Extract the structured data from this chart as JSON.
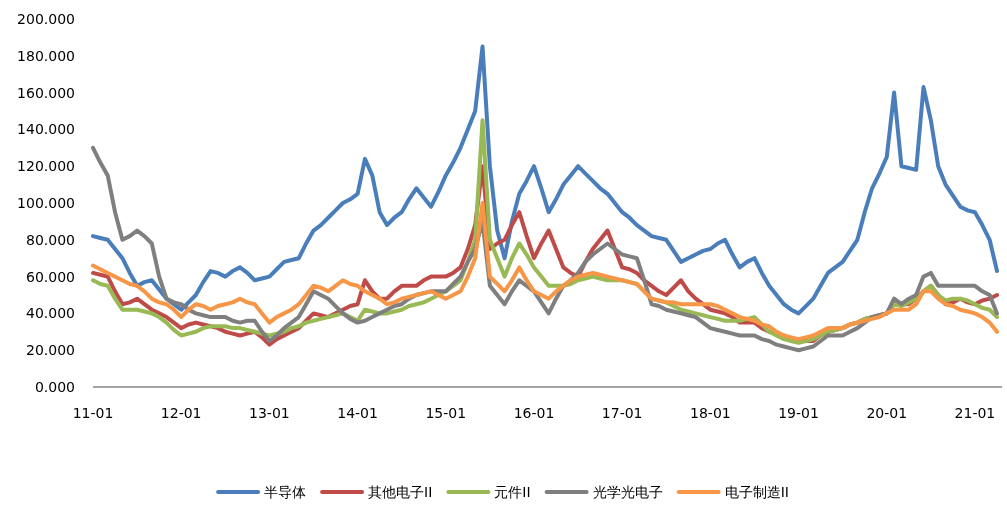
{
  "chart_data": {
    "type": "line",
    "categories": [
      "11-01",
      null,
      null,
      null,
      null,
      null,
      null,
      null,
      null,
      null,
      null,
      null,
      "12-01",
      null,
      null,
      null,
      null,
      null,
      null,
      null,
      null,
      null,
      null,
      null,
      "13-01",
      null,
      null,
      null,
      null,
      null,
      null,
      null,
      null,
      null,
      null,
      null,
      "14-01",
      null,
      null,
      null,
      null,
      null,
      null,
      null,
      null,
      null,
      null,
      null,
      "15-01",
      null,
      null,
      null,
      null,
      null,
      null,
      null,
      null,
      null,
      null,
      null,
      "16-01",
      null,
      null,
      null,
      null,
      null,
      null,
      null,
      null,
      null,
      null,
      null,
      "17-01",
      null,
      null,
      null,
      null,
      null,
      null,
      null,
      null,
      null,
      null,
      null,
      "18-01",
      null,
      null,
      null,
      null,
      null,
      null,
      null,
      null,
      null,
      null,
      null,
      "19-01",
      null,
      null,
      null,
      null,
      null,
      null,
      null,
      null,
      null,
      null,
      null,
      "20-01",
      null,
      null,
      null,
      null,
      null,
      null,
      null,
      null,
      null,
      null,
      null,
      "21-01",
      null,
      null,
      null
    ],
    "series": [
      {
        "name": "半导体",
        "color": "#4a7ebb",
        "values": [
          82,
          81,
          80,
          75,
          70,
          62,
          55,
          57,
          58,
          53,
          48,
          45,
          42,
          46,
          50,
          57,
          63,
          62,
          60,
          63,
          65,
          62,
          58,
          59,
          60,
          64,
          68,
          69,
          70,
          78,
          85,
          88,
          92,
          96,
          100,
          102,
          105,
          124,
          115,
          95,
          88,
          92,
          95,
          102,
          108,
          103,
          98,
          106,
          115,
          122,
          130,
          140,
          150,
          185,
          120,
          85,
          70,
          90,
          105,
          112,
          120,
          108,
          95,
          102,
          110,
          115,
          120,
          116,
          112,
          108,
          105,
          100,
          95,
          92,
          88,
          85,
          82,
          81,
          80,
          74,
          68,
          70,
          72,
          74,
          75,
          78,
          80,
          72,
          65,
          68,
          70,
          62,
          55,
          50,
          45,
          42,
          40,
          44,
          48,
          55,
          62,
          65,
          68,
          74,
          80,
          95,
          108,
          116,
          125,
          160,
          120,
          119,
          118,
          163,
          145,
          120,
          110,
          104,
          98,
          96,
          95,
          88,
          80,
          63
        ]
      },
      {
        "name": "其他电子II",
        "color": "#be4b48",
        "values": [
          62,
          61,
          60,
          52,
          45,
          46,
          48,
          45,
          42,
          40,
          38,
          35,
          32,
          34,
          35,
          34,
          33,
          32,
          30,
          29,
          28,
          29,
          30,
          27,
          23,
          26,
          28,
          30,
          32,
          36,
          40,
          39,
          38,
          40,
          42,
          44,
          45,
          58,
          52,
          48,
          48,
          52,
          55,
          55,
          55,
          58,
          60,
          60,
          60,
          62,
          65,
          75,
          88,
          120,
          75,
          78,
          80,
          88,
          95,
          82,
          70,
          78,
          85,
          75,
          65,
          62,
          60,
          68,
          75,
          80,
          85,
          75,
          65,
          64,
          62,
          58,
          55,
          52,
          50,
          54,
          58,
          52,
          48,
          45,
          42,
          41,
          40,
          38,
          35,
          35,
          35,
          32,
          30,
          29,
          28,
          26,
          25,
          25,
          25,
          28,
          30,
          31,
          32,
          34,
          35,
          37,
          38,
          39,
          40,
          45,
          45,
          45,
          48,
          52,
          55,
          50,
          45,
          46,
          48,
          46,
          45,
          47,
          48,
          50
        ]
      },
      {
        "name": "元件II",
        "color": "#98b954",
        "values": [
          58,
          56,
          55,
          48,
          42,
          42,
          42,
          41,
          40,
          38,
          35,
          31,
          28,
          29,
          30,
          32,
          33,
          33,
          33,
          32,
          32,
          31,
          30,
          29,
          28,
          29,
          30,
          32,
          33,
          35,
          36,
          37,
          38,
          39,
          40,
          38,
          36,
          42,
          41,
          40,
          40,
          41,
          42,
          44,
          45,
          46,
          48,
          50,
          52,
          55,
          58,
          68,
          80,
          145,
          80,
          70,
          60,
          70,
          78,
          72,
          65,
          60,
          55,
          55,
          55,
          56,
          58,
          59,
          60,
          59,
          58,
          58,
          58,
          57,
          56,
          52,
          48,
          47,
          46,
          44,
          42,
          41,
          40,
          39,
          38,
          37,
          36,
          36,
          36,
          37,
          38,
          34,
          30,
          28,
          26,
          25,
          24,
          25,
          26,
          28,
          30,
          31,
          32,
          34,
          35,
          37,
          38,
          39,
          40,
          45,
          44,
          46,
          48,
          52,
          55,
          50,
          47,
          48,
          48,
          47,
          45,
          43,
          42,
          38
        ]
      },
      {
        "name": "光学光电子",
        "color": "#7f7f7f",
        "values": [
          130,
          122,
          115,
          95,
          80,
          82,
          85,
          82,
          78,
          60,
          48,
          46,
          45,
          42,
          40,
          39,
          38,
          38,
          38,
          36,
          35,
          36,
          36,
          30,
          25,
          28,
          32,
          35,
          38,
          45,
          52,
          50,
          48,
          44,
          40,
          37,
          35,
          36,
          38,
          40,
          42,
          44,
          45,
          48,
          50,
          51,
          52,
          52,
          52,
          56,
          60,
          68,
          75,
          90,
          55,
          50,
          45,
          52,
          58,
          55,
          52,
          46,
          40,
          48,
          55,
          58,
          62,
          68,
          72,
          75,
          78,
          75,
          72,
          71,
          70,
          58,
          45,
          44,
          42,
          41,
          40,
          39,
          38,
          35,
          32,
          31,
          30,
          29,
          28,
          28,
          28,
          26,
          25,
          23,
          22,
          21,
          20,
          21,
          22,
          25,
          28,
          28,
          28,
          30,
          32,
          35,
          38,
          39,
          40,
          48,
          45,
          48,
          50,
          60,
          62,
          55,
          55,
          55,
          55,
          55,
          55,
          52,
          50,
          40
        ]
      },
      {
        "name": "电子制造II",
        "color": "#f79646",
        "values": [
          66,
          64,
          62,
          60,
          58,
          56,
          55,
          52,
          48,
          46,
          45,
          42,
          38,
          42,
          45,
          44,
          42,
          44,
          45,
          46,
          48,
          46,
          45,
          40,
          35,
          38,
          40,
          42,
          45,
          50,
          55,
          54,
          52,
          55,
          58,
          56,
          55,
          52,
          50,
          48,
          45,
          46,
          48,
          49,
          50,
          51,
          52,
          50,
          48,
          50,
          52,
          60,
          70,
          100,
          60,
          56,
          52,
          58,
          65,
          58,
          52,
          50,
          48,
          52,
          55,
          58,
          60,
          61,
          62,
          61,
          60,
          59,
          58,
          57,
          56,
          52,
          48,
          47,
          46,
          46,
          45,
          45,
          45,
          45,
          45,
          44,
          42,
          40,
          38,
          37,
          36,
          34,
          33,
          30,
          28,
          27,
          26,
          27,
          28,
          30,
          32,
          32,
          32,
          34,
          35,
          36,
          37,
          38,
          40,
          42,
          42,
          42,
          45,
          52,
          52,
          48,
          45,
          44,
          42,
          41,
          40,
          38,
          35,
          30
        ]
      }
    ],
    "ylim": [
      0,
      200
    ],
    "yticks": [
      {
        "value": 0,
        "label": "0.000"
      },
      {
        "value": 20,
        "label": "20.000"
      },
      {
        "value": 40,
        "label": "40.000"
      },
      {
        "value": 60,
        "label": "60.000"
      },
      {
        "value": 80,
        "label": "80.000"
      },
      {
        "value": 100,
        "label": "100.000"
      },
      {
        "value": 120,
        "label": "120.000"
      },
      {
        "value": 140,
        "label": "140.000"
      },
      {
        "value": 160,
        "label": "160.000"
      },
      {
        "value": 180,
        "label": "180.000"
      },
      {
        "value": 200,
        "label": "200.000"
      }
    ],
    "legend": "bottom"
  }
}
